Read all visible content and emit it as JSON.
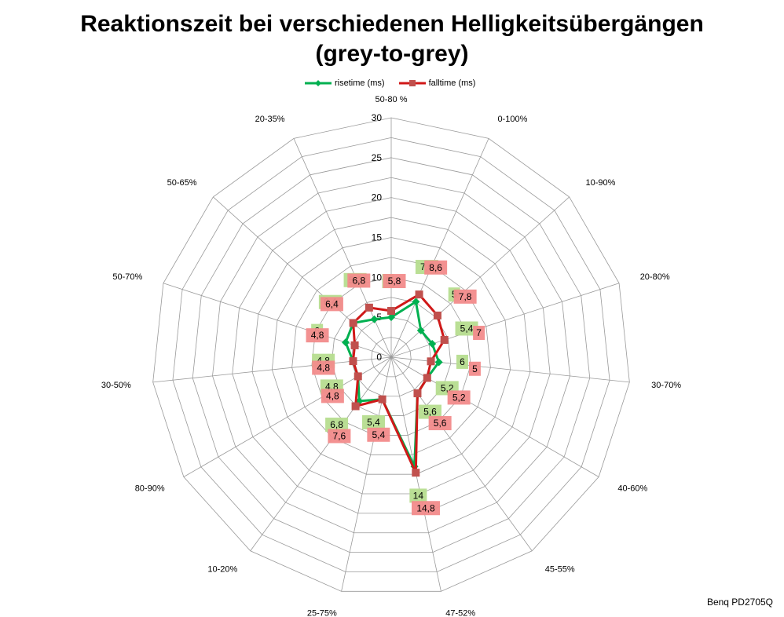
{
  "title_line1": "Reaktionszeit bei verschiedenen Helligkeitsübergängen",
  "title_line2": "(grey-to-grey)",
  "footnote": "Benq PD2705Q",
  "chart_data": {
    "type": "radar",
    "categories": [
      "50-80 %",
      "0-100%",
      "10-90%",
      "20-80%",
      "30-70%",
      "40-60%",
      "45-55%",
      "47-52%",
      "25-75%",
      "10-20%",
      "80-90%",
      "30-50%",
      "50-70%",
      "50-65%",
      "20-35%"
    ],
    "radial_ticks": [
      0,
      5,
      10,
      15,
      20,
      25,
      30
    ],
    "rmax": 30,
    "grid": true,
    "legend_position": "top",
    "series": [
      {
        "name": "risetime (ms)",
        "color": "#00b050",
        "marker": "diamond",
        "values": [
          5,
          7.6,
          5,
          5.4,
          6,
          5.2,
          5.6,
          14,
          5.4,
          6.8,
          4.8,
          4.8,
          6,
          6.4,
          5.2
        ],
        "labels": [
          "5",
          "7,6",
          "5",
          "5,4",
          "6",
          "5,2",
          "5,6",
          "14",
          "5,4",
          "6,8",
          "4,8",
          "4,8",
          "6",
          "6,4",
          "5,2"
        ]
      },
      {
        "name": "falltime (ms)",
        "color": "#d01818",
        "marker": "square",
        "values": [
          5.8,
          8.6,
          7.8,
          7,
          5,
          5.2,
          5.6,
          14.8,
          5.4,
          7.6,
          4.8,
          4.8,
          4.8,
          6.4,
          6.8
        ],
        "labels": [
          "5,8",
          "8,6",
          "7,8",
          "7",
          "5",
          "5,2",
          "5,6",
          "14,8",
          "5,4",
          "7,6",
          "4,8",
          "4,8",
          "4,8",
          "6,4",
          "6,8"
        ]
      }
    ]
  }
}
